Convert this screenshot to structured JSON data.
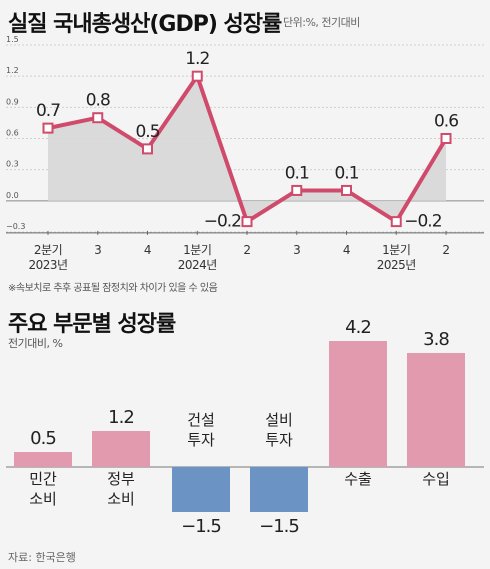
{
  "chart_data": [
    {
      "type": "area",
      "title": "실질 국내총생산(GDP) 성장률",
      "unit_label": "단위:%, 전기대비",
      "x": [
        "2분기",
        "3",
        "4",
        "1분기",
        "2",
        "3",
        "4",
        "1분기",
        "2"
      ],
      "year_labels": [
        "2023년",
        "",
        "",
        "2024년",
        "",
        "",
        "",
        "2025년",
        ""
      ],
      "values": [
        0.7,
        0.8,
        0.5,
        1.2,
        -0.2,
        0.1,
        0.1,
        -0.2,
        0.6
      ],
      "value_labels": [
        "0.7",
        "0.8",
        "0.5",
        "1.2",
        "−0.2",
        "0.1",
        "0.1",
        "−0.2",
        "0.6"
      ],
      "y_ticks": [
        "1.5",
        "1.2",
        "0.9",
        "0.6",
        "0.3",
        "0.0",
        "−0.3"
      ],
      "ylim": [
        -0.3,
        1.5
      ],
      "grid": true,
      "line_color": "#cf4a6b",
      "fill_color": "#d7d7d7",
      "note": "※속보치로 추후 공표될 잠정치와 차이가 있을 수 있음"
    },
    {
      "type": "bar",
      "title": "주요 부문별 성장률",
      "unit_label": "전기대비, %",
      "categories": [
        "민간\n소비",
        "정부\n소비",
        "건설\n투자",
        "설비\n투자",
        "수출",
        "수입"
      ],
      "values": [
        0.5,
        1.2,
        -1.5,
        -1.5,
        4.2,
        3.8
      ],
      "value_labels": [
        "0.5",
        "1.2",
        "−1.5",
        "−1.5",
        "4.2",
        "3.8"
      ],
      "positive_color": "#e29aae",
      "negative_color": "#6b93c4"
    }
  ],
  "source": "자료: 한국은행"
}
